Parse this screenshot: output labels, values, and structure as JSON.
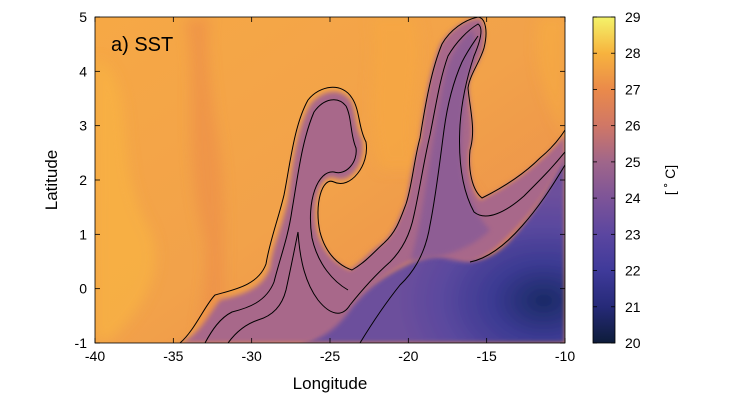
{
  "chart_data": {
    "type": "heatmap",
    "panel_label": "a) SST",
    "xlabel": "Longitude",
    "ylabel": "Latitude",
    "xlim": [
      -40,
      -10
    ],
    "ylim": [
      -1,
      5
    ],
    "x_ticks": [
      -40,
      -35,
      -30,
      -25,
      -20,
      -15,
      -10
    ],
    "y_ticks": [
      -1,
      0,
      1,
      2,
      3,
      4,
      5
    ],
    "colorbar": {
      "label": "[ ˚ C]",
      "range": [
        20,
        29
      ],
      "ticks": [
        20,
        21,
        22,
        23,
        24,
        25,
        26,
        27,
        28,
        29
      ]
    },
    "field_description": "Sea surface temperature; warm 27-28 C to the north and west, a cold tongue of 21-24 C in the southeast, with a 25 C tropical-instability-wave cusp extending to about 4.8 N near -16.",
    "contour_levels": [
      25.0,
      25.5
    ],
    "colors": {
      "c20": "#0d1c3a",
      "c21": "#262a78",
      "c22": "#3f3a9a",
      "c23": "#5b46a0",
      "c24": "#7d5498",
      "c25": "#a0668a",
      "c26": "#d07766",
      "c27": "#ea8a4a",
      "c28": "#f7b33e",
      "c29": "#f3f36a"
    }
  }
}
